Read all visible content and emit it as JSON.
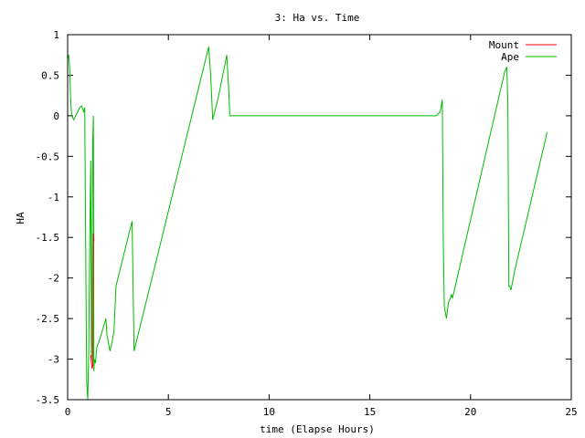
{
  "chart_data": {
    "type": "line",
    "title": "3: Ha vs. Time",
    "xlabel": "time (Elapse Hours)",
    "ylabel": "HA",
    "xlim": [
      0,
      25
    ],
    "ylim": [
      -3.5,
      1
    ],
    "xticks": [
      0,
      5,
      10,
      15,
      20,
      25
    ],
    "xtick_labels": [
      "0",
      "5",
      "10",
      "15",
      "20",
      "25"
    ],
    "yticks": [
      1,
      0.5,
      0,
      -0.5,
      -1,
      -1.5,
      -2,
      -2.5,
      -3,
      -3.5
    ],
    "ytick_labels": [
      "1",
      "0.5",
      "0",
      "-0.5",
      "-1",
      "-1.5",
      "-2",
      "-2.5",
      "-3",
      "-3.5"
    ],
    "grid": false,
    "legend_position": "top-right",
    "series": [
      {
        "name": "Mount",
        "color": "#ff0000",
        "x": [
          1.15,
          1.18,
          1.22,
          1.25,
          1.28,
          1.3
        ],
        "y": [
          -2.95,
          -3.05,
          -3.12,
          -3.08,
          -1.45,
          -1.55
        ]
      },
      {
        "name": "Ape",
        "color": "#00bb00",
        "x": [
          0.0,
          0.05,
          0.1,
          0.15,
          0.2,
          0.3,
          0.4,
          0.6,
          0.7,
          0.8,
          0.85,
          0.92,
          0.95,
          1.0,
          1.05,
          1.1,
          1.15,
          1.18,
          1.2,
          1.25,
          1.28,
          1.3,
          1.33,
          1.38,
          1.45,
          1.6,
          1.9,
          1.95,
          2.1,
          2.2,
          2.3,
          2.4,
          3.1,
          3.2,
          3.3,
          7.0,
          7.1,
          7.2,
          7.3,
          7.5,
          7.9,
          8.0,
          8.05,
          8.1,
          18.3,
          18.5,
          18.6,
          18.65,
          18.7,
          18.8,
          18.85,
          18.9,
          19.0,
          19.05,
          19.1,
          21.7,
          21.8,
          21.85,
          21.9,
          21.95,
          22.0,
          22.2,
          23.8
        ],
        "y": [
          0.7,
          0.75,
          0.6,
          0.2,
          0.0,
          -0.05,
          0.0,
          0.1,
          0.12,
          0.05,
          0.1,
          -2.5,
          -3.3,
          -3.5,
          -2.9,
          -1.5,
          -0.55,
          -3.05,
          -2.85,
          -0.3,
          0.0,
          -3.15,
          -3.0,
          -3.05,
          -2.85,
          -2.75,
          -2.5,
          -2.7,
          -2.9,
          -2.8,
          -2.65,
          -2.1,
          -1.4,
          -1.3,
          -2.9,
          0.85,
          0.5,
          -0.05,
          0.05,
          0.25,
          0.75,
          0.3,
          0.0,
          0.0,
          0.0,
          0.05,
          0.2,
          -1.6,
          -2.35,
          -2.5,
          -2.4,
          -2.3,
          -2.25,
          -2.2,
          -2.25,
          0.55,
          0.6,
          0.15,
          -2.1,
          -2.1,
          -2.15,
          -1.9,
          -0.2
        ]
      }
    ]
  }
}
